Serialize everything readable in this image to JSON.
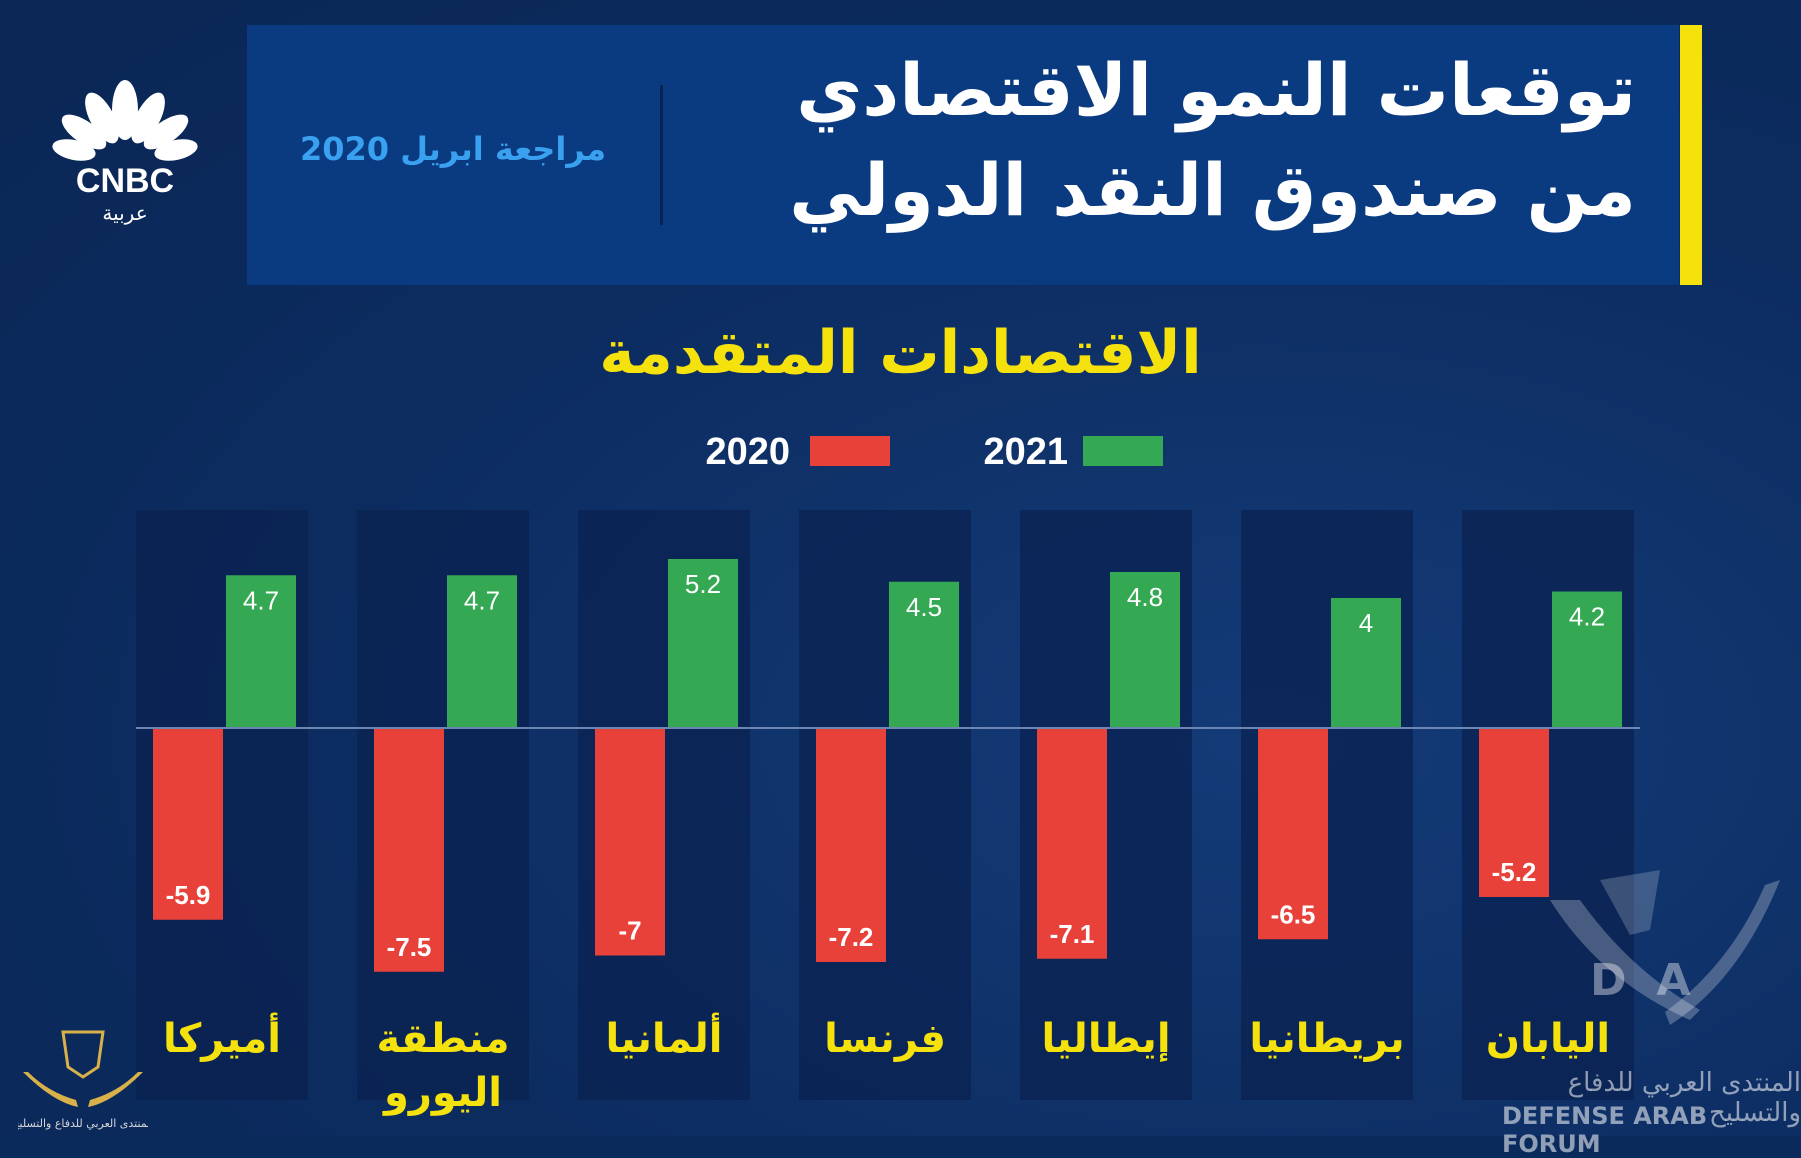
{
  "header": {
    "title_line1": "توقعات النمو الاقتصادي",
    "title_line2": "من صندوق النقد الدولي",
    "review_note": "مراجعة ابريل 2020"
  },
  "logo": {
    "brand": "CNBC",
    "brand_arabic": "عربية",
    "icon": "peacock-icon"
  },
  "colors": {
    "series_2020": "#e8413a",
    "series_2021": "#34a853",
    "accent_yellow": "#f5e10c",
    "header_bg": "#0a3a80"
  },
  "chart_data": {
    "type": "bar",
    "title": "الاقتصادات المتقدمة",
    "categories": [
      "أميركا",
      "منطقة اليورو",
      "ألمانيا",
      "فرنسا",
      "إيطاليا",
      "بريطانيا",
      "اليابان"
    ],
    "category_lines": [
      [
        "أميركا"
      ],
      [
        "منطقة",
        "اليورو"
      ],
      [
        "ألمانيا"
      ],
      [
        "فرنسا"
      ],
      [
        "إيطاليا"
      ],
      [
        "بريطانيا"
      ],
      [
        "اليابان"
      ]
    ],
    "series": [
      {
        "name": "2020",
        "values": [
          -5.9,
          -7.5,
          -7,
          -7.2,
          -7.1,
          -6.5,
          -5.2
        ]
      },
      {
        "name": "2021",
        "values": [
          4.7,
          4.7,
          5.2,
          4.5,
          4.8,
          4,
          4.2
        ]
      }
    ],
    "value_labels": {
      "2020": [
        "-5.9",
        "-7.5",
        "-7",
        "-7.2",
        "-7.1",
        "-6.5",
        "-5.2"
      ],
      "2021": [
        "4.7",
        "4.7",
        "5.2",
        "4.5",
        "4.8",
        "4",
        "4.2"
      ]
    },
    "ylim": [
      -8.5,
      6
    ],
    "legend_position": "top-center",
    "grid": false
  },
  "watermarks": {
    "forum_arabic": "المنتدى العربي للدفاع والتسليح",
    "forum_english": "DEFENSE ARAB FORUM",
    "forum_letters": "DA"
  }
}
